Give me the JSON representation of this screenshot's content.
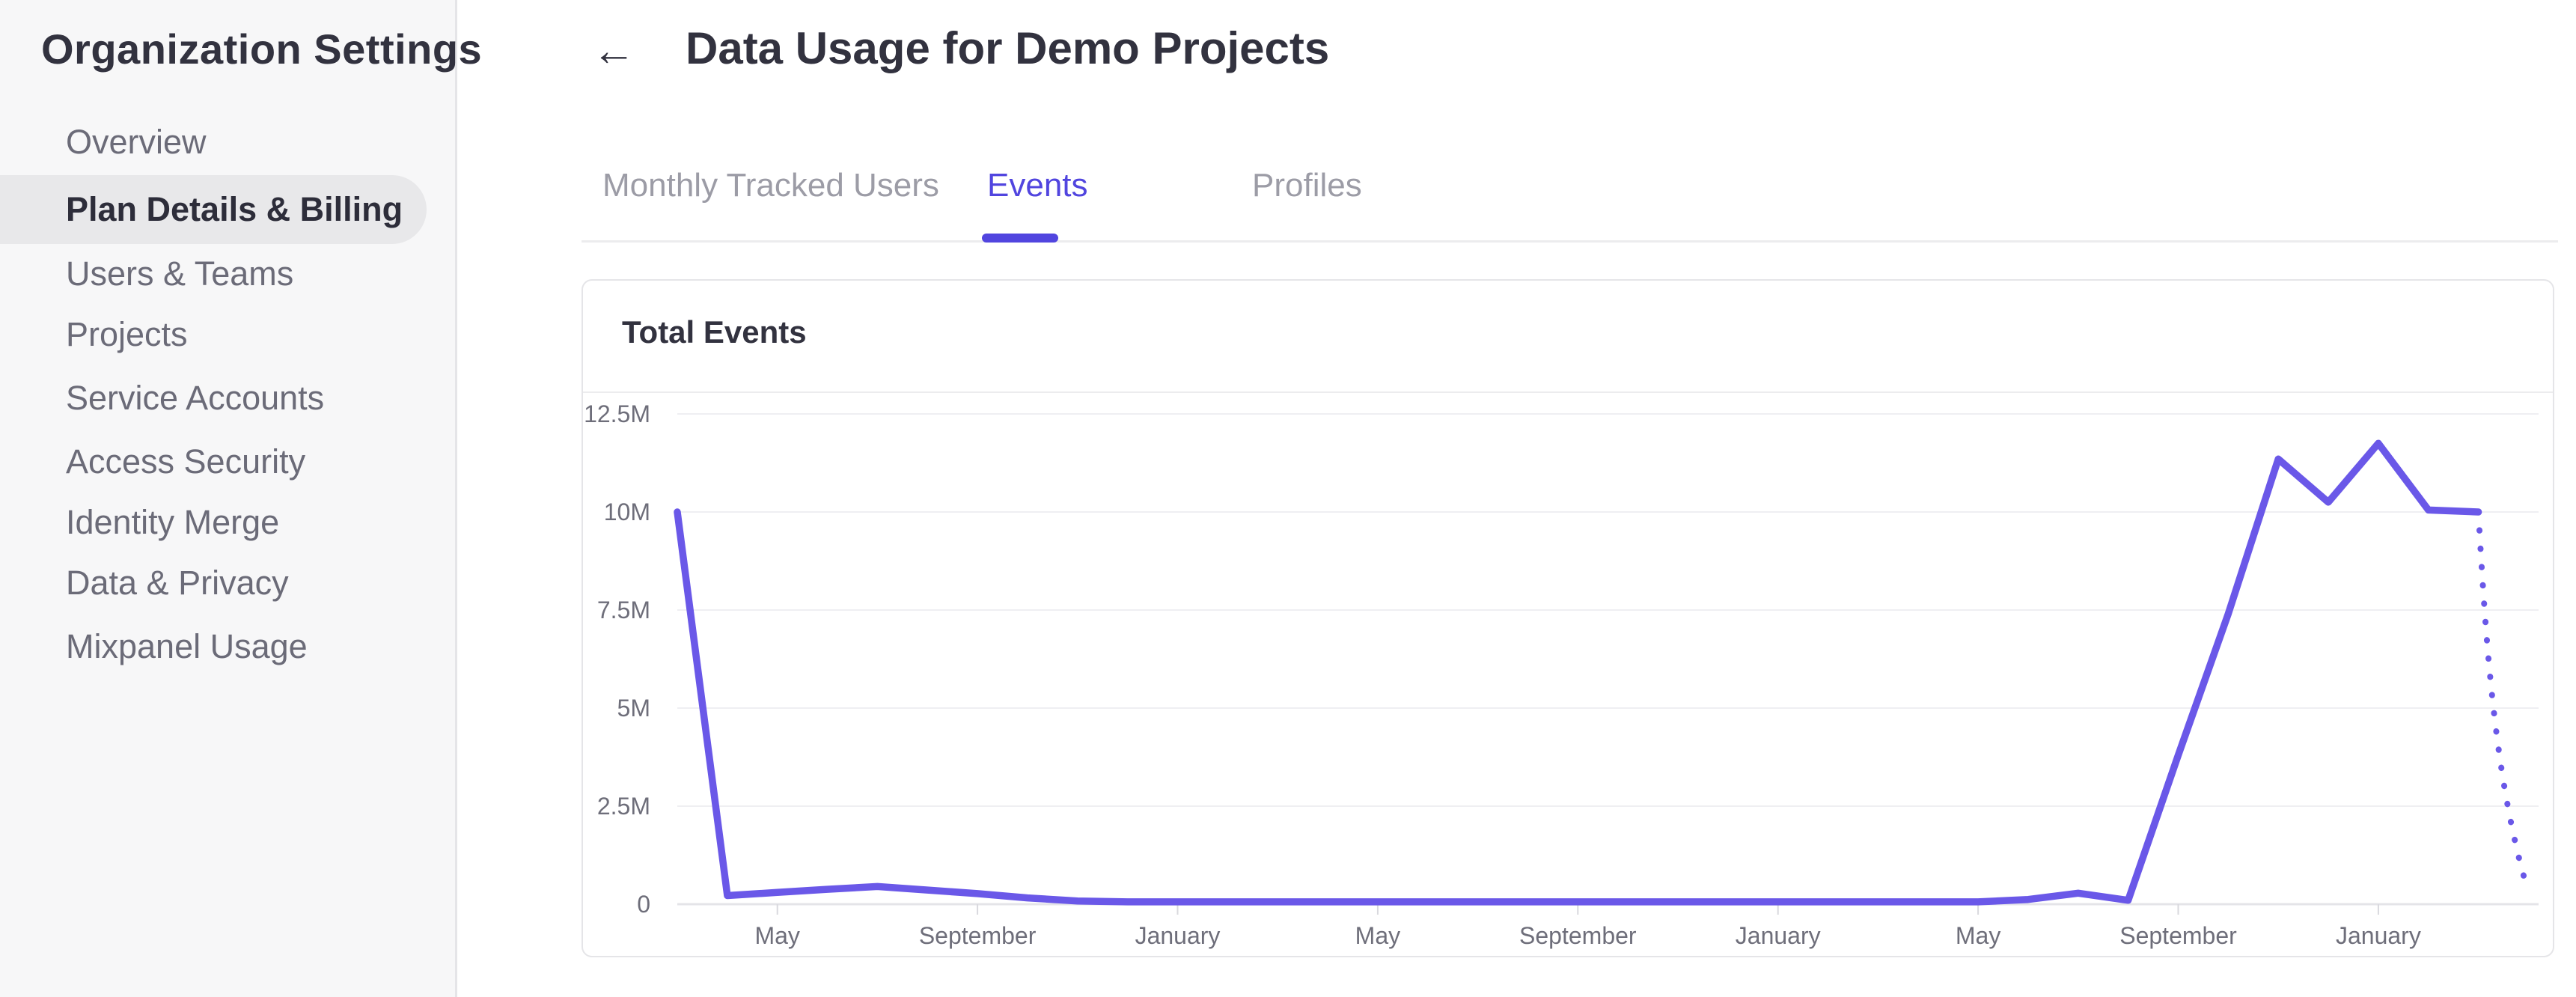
{
  "sidebar": {
    "title": "Organization Settings",
    "items": [
      {
        "label": "Overview",
        "selected": false
      },
      {
        "label": "Plan Details & Billing",
        "selected": true
      },
      {
        "label": "Users & Teams",
        "selected": false
      },
      {
        "label": "Projects",
        "selected": false
      },
      {
        "label": "Service Accounts",
        "selected": false
      },
      {
        "label": "Access Security",
        "selected": false
      },
      {
        "label": "Identity Merge",
        "selected": false
      },
      {
        "label": "Data & Privacy",
        "selected": false
      },
      {
        "label": "Mixpanel Usage",
        "selected": false
      }
    ]
  },
  "header": {
    "title": "Data Usage for Demo Projects",
    "back_icon": "←"
  },
  "tabs": [
    {
      "label": "Monthly Tracked Users",
      "active": false
    },
    {
      "label": "Events",
      "active": true
    },
    {
      "label": "Profiles",
      "active": false
    }
  ],
  "card": {
    "title": "Total Events"
  },
  "colors": {
    "accent_purple": "#5145DF",
    "line_purple": "#6A58E8",
    "gridline": "#EFEFF2",
    "axis_line": "#E4E4E8",
    "tick_mark": "#D9D9DE",
    "axis_text": "#6E6E7A"
  },
  "chart_data": {
    "type": "line",
    "title": "Total Events",
    "y_unit": "M",
    "ylim": [
      0,
      12.5
    ],
    "grid": true,
    "legend_position": "none",
    "y_tick_values": [
      0,
      2.5,
      5,
      7.5,
      10,
      12.5
    ],
    "y_tick_labels": [
      "0",
      "2.5M",
      "5M",
      "7.5M",
      "10M",
      "12.5M"
    ],
    "x_tick_labels": [
      "May",
      "September",
      "January",
      "May",
      "September",
      "January",
      "May",
      "September",
      "January"
    ],
    "x_tick_month_offsets": [
      2,
      6,
      10,
      14,
      18,
      22,
      26,
      30,
      34
    ],
    "series": [
      {
        "name": "Total Events",
        "note": "monthly values in millions, starting 2 months before first May tick",
        "values": [
          10.0,
          0.22,
          0.3,
          0.38,
          0.45,
          0.36,
          0.27,
          0.16,
          0.08,
          0.06,
          0.06,
          0.06,
          0.06,
          0.06,
          0.06,
          0.06,
          0.06,
          0.06,
          0.06,
          0.06,
          0.06,
          0.06,
          0.06,
          0.06,
          0.06,
          0.06,
          0.06,
          0.12,
          0.28,
          0.1,
          3.8,
          7.4,
          11.35,
          10.25,
          11.75,
          10.05,
          10.0
        ]
      }
    ],
    "projection": {
      "style": "dotted",
      "month_offset": 37,
      "end_value": 0.3
    }
  }
}
